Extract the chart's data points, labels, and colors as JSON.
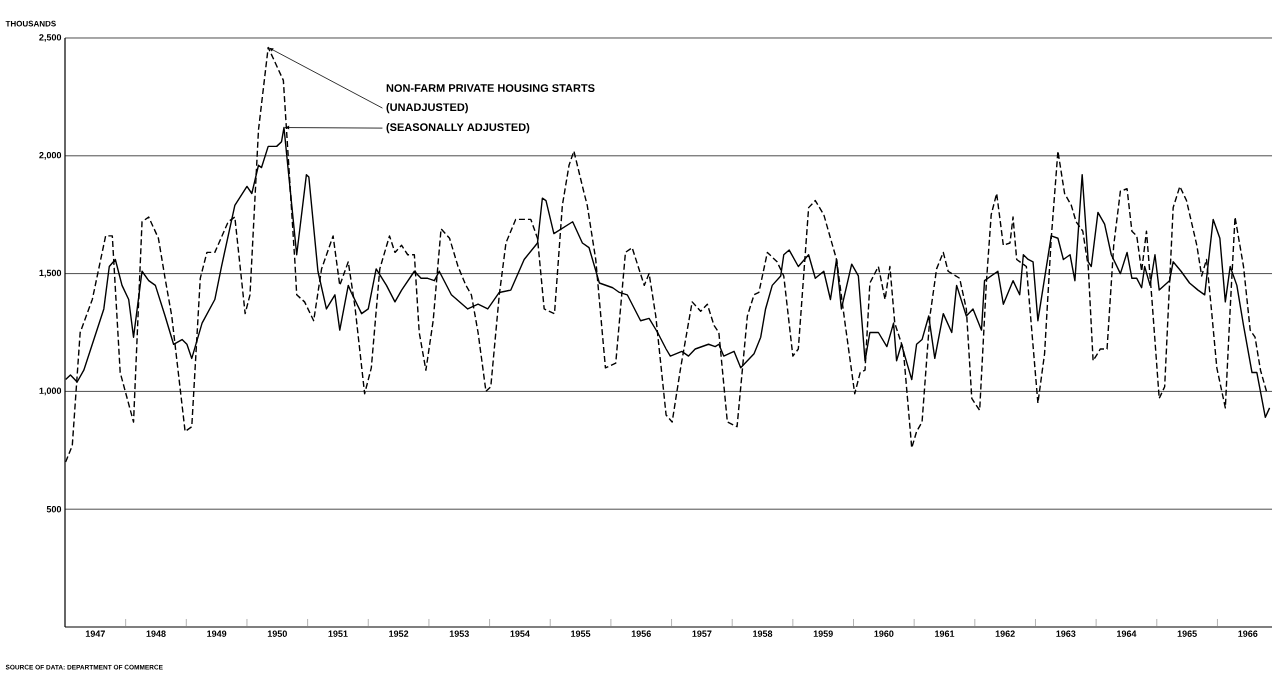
{
  "chart_data": {
    "type": "line",
    "title": "NON-FARM PRIVATE HOUSING STARTS",
    "ylabel": "THOUSANDS",
    "annotations": [
      "SOURCE OF DATA: DEPARTMENT OF COMMERCE"
    ],
    "xlim": [
      1947,
      1966.9
    ],
    "ylim": [
      0,
      2500
    ],
    "xticks": [
      {
        "value": 1947.5,
        "label": "1947"
      },
      {
        "value": 1948.5,
        "label": "1948"
      },
      {
        "value": 1949.5,
        "label": "1949"
      },
      {
        "value": 1950.5,
        "label": "1950"
      },
      {
        "value": 1951.5,
        "label": "1951"
      },
      {
        "value": 1952.5,
        "label": "1952"
      },
      {
        "value": 1953.5,
        "label": "1953"
      },
      {
        "value": 1954.5,
        "label": "1954"
      },
      {
        "value": 1955.5,
        "label": "1955"
      },
      {
        "value": 1956.5,
        "label": "1956"
      },
      {
        "value": 1957.5,
        "label": "1957"
      },
      {
        "value": 1958.5,
        "label": "1958"
      },
      {
        "value": 1959.5,
        "label": "1959"
      },
      {
        "value": 1960.5,
        "label": "1960"
      },
      {
        "value": 1961.5,
        "label": "1961"
      },
      {
        "value": 1962.5,
        "label": "1962"
      },
      {
        "value": 1963.5,
        "label": "1963"
      },
      {
        "value": 1964.5,
        "label": "1964"
      },
      {
        "value": 1965.5,
        "label": "1965"
      },
      {
        "value": 1966.5,
        "label": "1966"
      },
      {
        "value": 1948,
        "label": null
      },
      {
        "value": 1949,
        "label": null
      },
      {
        "value": 1950,
        "label": null
      },
      {
        "value": 1951,
        "label": null
      },
      {
        "value": 1952,
        "label": null
      },
      {
        "value": 1953,
        "label": null
      },
      {
        "value": 1954,
        "label": null
      },
      {
        "value": 1955,
        "label": null
      },
      {
        "value": 1956,
        "label": null
      },
      {
        "value": 1957,
        "label": null
      },
      {
        "value": 1958,
        "label": null
      },
      {
        "value": 1959,
        "label": null
      },
      {
        "value": 1960,
        "label": null
      },
      {
        "value": 1961,
        "label": null
      },
      {
        "value": 1962,
        "label": null
      },
      {
        "value": 1963,
        "label": null
      },
      {
        "value": 1964,
        "label": null
      },
      {
        "value": 1965,
        "label": null
      },
      {
        "value": 1966,
        "label": null
      }
    ],
    "yticks": [
      {
        "value": 500,
        "label": "500"
      },
      {
        "value": 1000,
        "label": "1,000"
      },
      {
        "value": 1500,
        "label": "1,500"
      },
      {
        "value": 2000,
        "label": "2,000"
      },
      {
        "value": 2500,
        "label": "2,500"
      }
    ],
    "grid": "y",
    "series": [
      {
        "name": "(UNADJUSTED)",
        "color": "#000000",
        "line_style": "dashed",
        "x": [
          1947.01,
          1947.12,
          1947.25,
          1947.45,
          1947.67,
          1947.78,
          1947.91,
          1948.13,
          1948.27,
          1948.38,
          1948.54,
          1948.65,
          1948.76,
          1948.98,
          1949.09,
          1949.23,
          1949.34,
          1949.47,
          1949.69,
          1949.8,
          1949.97,
          1950.05,
          1950.19,
          1950.35,
          1950.6,
          1950.79,
          1950.82,
          1950.95,
          1951.1,
          1951.23,
          1951.42,
          1951.53,
          1951.67,
          1951.78,
          1951.94,
          1952.05,
          1952.19,
          1952.35,
          1952.44,
          1952.55,
          1952.65,
          1952.76,
          1952.84,
          1952.95,
          1953.07,
          1953.2,
          1953.34,
          1953.48,
          1953.61,
          1953.7,
          1953.81,
          1953.94,
          1954.02,
          1954.16,
          1954.27,
          1954.43,
          1954.68,
          1954.79,
          1954.9,
          1955.07,
          1955.2,
          1955.31,
          1955.39,
          1955.56,
          1955.61,
          1955.75,
          1955.91,
          1956.08,
          1956.24,
          1956.35,
          1956.55,
          1956.63,
          1956.74,
          1956.91,
          1957.01,
          1957.15,
          1957.34,
          1957.48,
          1957.59,
          1957.7,
          1957.78,
          1957.92,
          1958.08,
          1958.25,
          1958.36,
          1958.44,
          1958.58,
          1958.74,
          1958.85,
          1959.0,
          1959.09,
          1959.26,
          1959.37,
          1959.51,
          1959.72,
          1959.86,
          1960.02,
          1960.11,
          1960.19,
          1960.27,
          1960.41,
          1960.52,
          1960.6,
          1960.68,
          1960.82,
          1960.96,
          1961.04,
          1961.13,
          1961.26,
          1961.37,
          1961.48,
          1961.56,
          1961.75,
          1961.86,
          1961.95,
          1962.08,
          1962.19,
          1962.27,
          1962.36,
          1962.47,
          1962.58,
          1962.63,
          1962.69,
          1962.85,
          1963.04,
          1963.15,
          1963.26,
          1963.37,
          1963.48,
          1963.59,
          1963.67,
          1963.78,
          1963.87,
          1963.95,
          1964.07,
          1964.18,
          1964.29,
          1964.4,
          1964.51,
          1964.59,
          1964.67,
          1964.75,
          1964.83,
          1964.92,
          1965.04,
          1965.13,
          1965.27,
          1965.38,
          1965.49,
          1965.66,
          1965.74,
          1965.82,
          1965.9,
          1965.99,
          1966.13,
          1966.21,
          1966.29,
          1966.43,
          1966.54,
          1966.62,
          1966.71,
          1966.82
        ],
        "values": [
          700,
          770,
          1250,
          1390,
          1660,
          1660,
          1080,
          870,
          1720,
          1740,
          1650,
          1480,
          1320,
          830,
          850,
          1480,
          1590,
          1590,
          1720,
          1740,
          1330,
          1410,
          2110,
          2460,
          2320,
          1550,
          1410,
          1380,
          1300,
          1520,
          1660,
          1450,
          1550,
          1360,
          990,
          1100,
          1520,
          1660,
          1590,
          1620,
          1580,
          1580,
          1250,
          1090,
          1300,
          1690,
          1650,
          1530,
          1450,
          1410,
          1250,
          1000,
          1020,
          1410,
          1630,
          1730,
          1730,
          1650,
          1350,
          1330,
          1790,
          1960,
          2020,
          1840,
          1790,
          1560,
          1100,
          1120,
          1590,
          1610,
          1450,
          1500,
          1320,
          900,
          870,
          1100,
          1380,
          1340,
          1370,
          1280,
          1250,
          870,
          850,
          1320,
          1410,
          1420,
          1590,
          1550,
          1490,
          1150,
          1180,
          1780,
          1810,
          1750,
          1560,
          1290,
          990,
          1080,
          1090,
          1460,
          1530,
          1390,
          1530,
          1290,
          1180,
          760,
          830,
          870,
          1320,
          1520,
          1590,
          1510,
          1480,
          1350,
          970,
          920,
          1460,
          1750,
          1840,
          1620,
          1630,
          1740,
          1560,
          1530,
          950,
          1160,
          1650,
          2020,
          1840,
          1790,
          1720,
          1680,
          1530,
          1130,
          1180,
          1180,
          1620,
          1850,
          1860,
          1680,
          1660,
          1510,
          1680,
          1390,
          970,
          1020,
          1780,
          1870,
          1810,
          1620,
          1490,
          1560,
          1350,
          1100,
          930,
          1350,
          1740,
          1530,
          1260,
          1230,
          1090,
          990
        ]
      },
      {
        "name": "(SEASONALLY ADJUSTED)",
        "color": "#000000",
        "line_style": "solid",
        "x": [
          1947.01,
          1947.09,
          1947.2,
          1947.31,
          1947.64,
          1947.73,
          1947.83,
          1947.94,
          1948.05,
          1948.13,
          1948.27,
          1948.38,
          1948.49,
          1948.65,
          1948.79,
          1948.93,
          1949.01,
          1949.09,
          1949.26,
          1949.47,
          1949.58,
          1949.8,
          1950.0,
          1950.08,
          1950.19,
          1950.24,
          1950.35,
          1950.49,
          1950.57,
          1950.61,
          1950.82,
          1950.98,
          1951.02,
          1951.17,
          1951.31,
          1951.45,
          1951.53,
          1951.67,
          1951.72,
          1951.89,
          1952.0,
          1952.13,
          1952.3,
          1952.44,
          1952.55,
          1952.76,
          1952.87,
          1952.98,
          1953.09,
          1953.17,
          1953.37,
          1953.64,
          1953.81,
          1953.97,
          1954.16,
          1954.35,
          1954.57,
          1954.79,
          1954.87,
          1954.93,
          1955.06,
          1955.37,
          1955.53,
          1955.64,
          1955.81,
          1956.03,
          1956.14,
          1956.27,
          1956.49,
          1956.63,
          1956.77,
          1956.91,
          1956.98,
          1957.17,
          1957.28,
          1957.39,
          1957.61,
          1957.72,
          1957.78,
          1957.86,
          1958.03,
          1958.14,
          1958.36,
          1958.47,
          1958.55,
          1958.66,
          1958.8,
          1958.85,
          1958.94,
          1959.09,
          1959.26,
          1959.37,
          1959.51,
          1959.62,
          1959.72,
          1959.8,
          1959.97,
          1960.08,
          1960.19,
          1960.27,
          1960.41,
          1960.55,
          1960.66,
          1960.71,
          1960.79,
          1960.96,
          1961.04,
          1961.13,
          1961.24,
          1961.34,
          1961.48,
          1961.62,
          1961.7,
          1961.86,
          1961.97,
          1962.11,
          1962.16,
          1962.38,
          1962.47,
          1962.63,
          1962.74,
          1962.8,
          1962.88,
          1962.96,
          1963.04,
          1963.26,
          1963.37,
          1963.46,
          1963.57,
          1963.65,
          1963.77,
          1963.87,
          1963.92,
          1964.03,
          1964.14,
          1964.25,
          1964.4,
          1964.51,
          1964.59,
          1964.67,
          1964.75,
          1964.8,
          1964.89,
          1964.97,
          1965.04,
          1965.21,
          1965.27,
          1965.4,
          1965.54,
          1965.68,
          1965.79,
          1965.93,
          1966.04,
          1966.13,
          1966.21,
          1966.32,
          1966.43,
          1966.57,
          1966.65,
          1966.79,
          1966.86
        ],
        "values": [
          1050,
          1070,
          1040,
          1090,
          1350,
          1530,
          1560,
          1450,
          1390,
          1230,
          1510,
          1470,
          1450,
          1320,
          1200,
          1220,
          1200,
          1140,
          1290,
          1390,
          1530,
          1790,
          1870,
          1840,
          1960,
          1950,
          2040,
          2040,
          2060,
          2120,
          1580,
          1920,
          1910,
          1510,
          1350,
          1410,
          1260,
          1450,
          1420,
          1330,
          1350,
          1520,
          1450,
          1380,
          1430,
          1510,
          1480,
          1480,
          1470,
          1510,
          1410,
          1350,
          1370,
          1350,
          1420,
          1430,
          1560,
          1630,
          1820,
          1810,
          1670,
          1720,
          1630,
          1610,
          1460,
          1440,
          1420,
          1410,
          1300,
          1310,
          1250,
          1180,
          1150,
          1170,
          1150,
          1180,
          1200,
          1190,
          1200,
          1150,
          1170,
          1100,
          1160,
          1230,
          1350,
          1450,
          1490,
          1580,
          1600,
          1530,
          1580,
          1480,
          1510,
          1390,
          1560,
          1350,
          1540,
          1490,
          1130,
          1250,
          1250,
          1190,
          1290,
          1130,
          1200,
          1050,
          1200,
          1220,
          1320,
          1140,
          1330,
          1250,
          1450,
          1320,
          1350,
          1260,
          1470,
          1510,
          1370,
          1470,
          1410,
          1580,
          1560,
          1550,
          1300,
          1660,
          1650,
          1560,
          1580,
          1470,
          1920,
          1550,
          1530,
          1760,
          1710,
          1580,
          1500,
          1590,
          1480,
          1480,
          1440,
          1530,
          1450,
          1580,
          1430,
          1470,
          1550,
          1510,
          1460,
          1430,
          1410,
          1730,
          1650,
          1380,
          1530,
          1450,
          1280,
          1080,
          1080,
          890,
          930
        ]
      }
    ]
  }
}
